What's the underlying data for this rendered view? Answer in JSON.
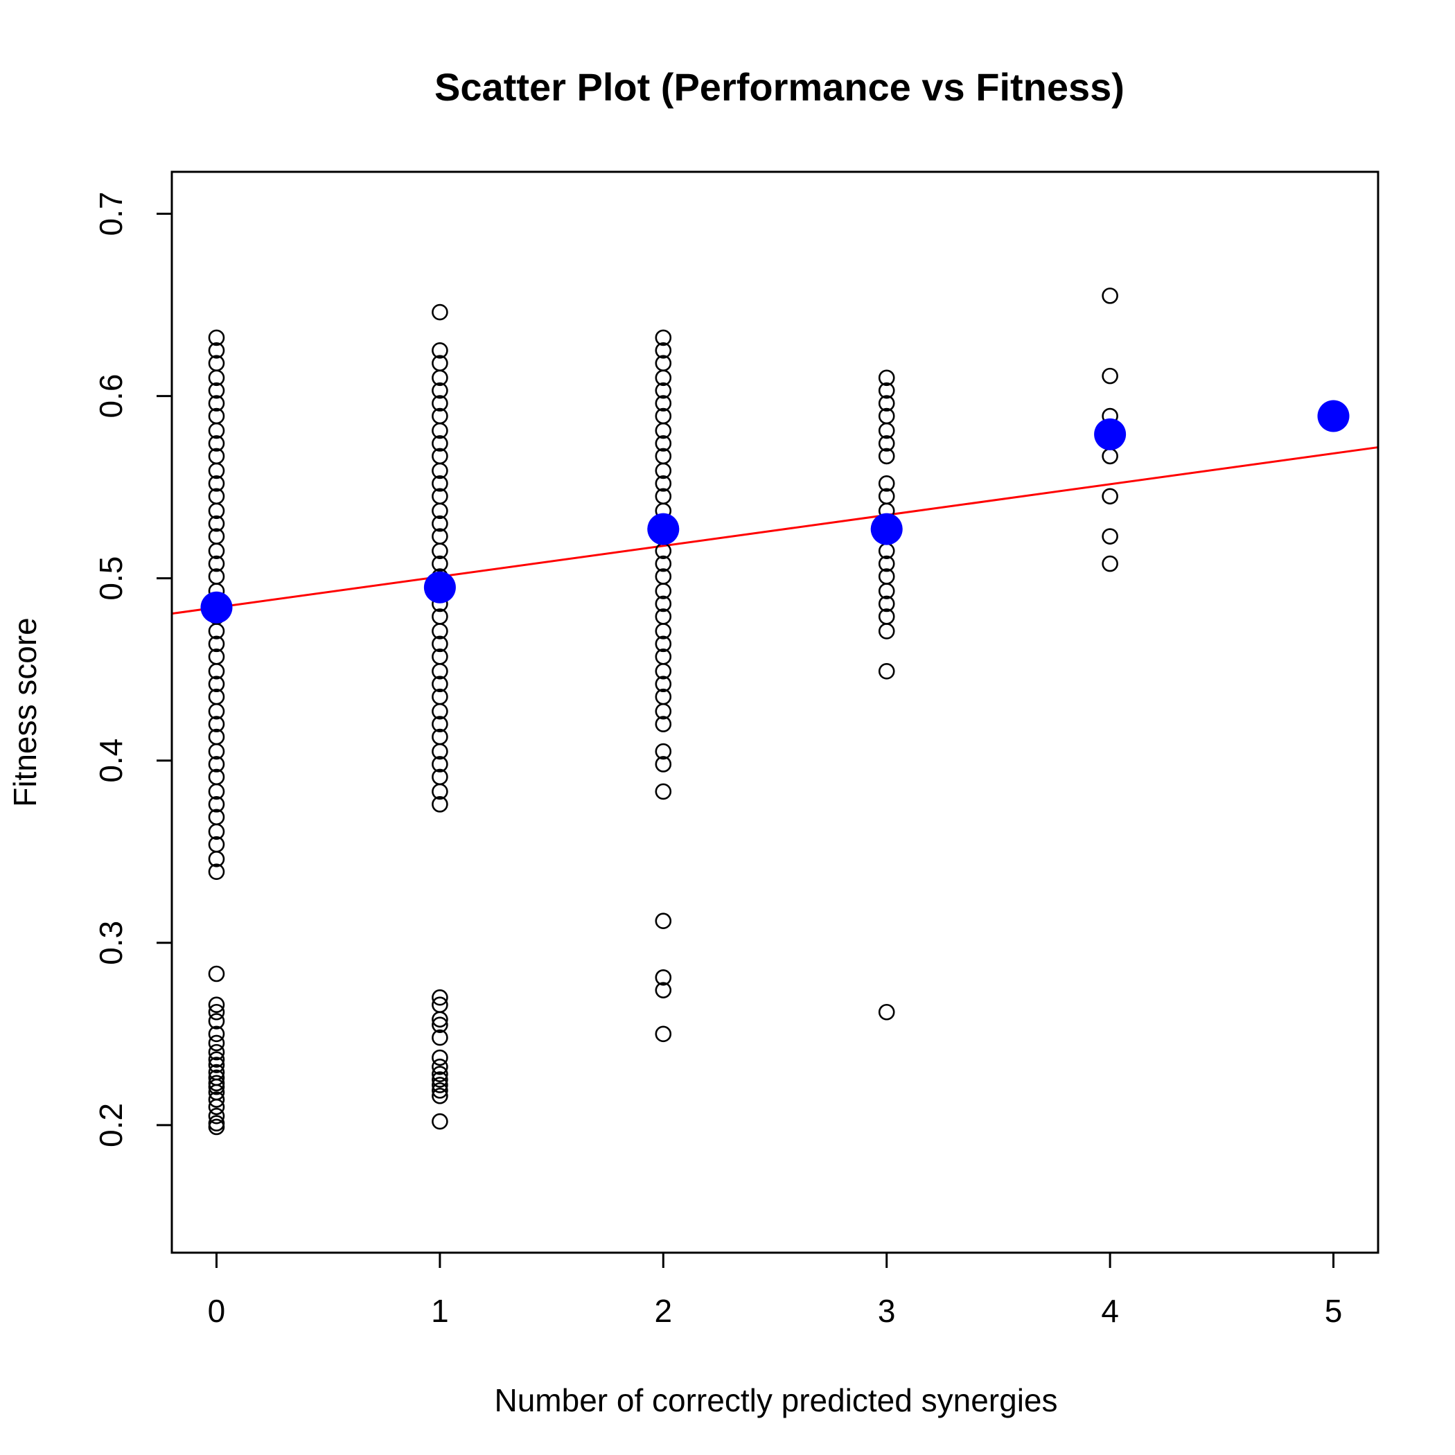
{
  "chart_data": {
    "type": "scatter",
    "title": "Scatter Plot (Performance vs Fitness)",
    "xlabel": "Number of correctly predicted synergies",
    "ylabel": "Fitness score",
    "xlim": [
      -0.2,
      5.2
    ],
    "ylim": [
      0.13,
      0.723
    ],
    "xticks": [
      "0",
      "1",
      "2",
      "3",
      "4",
      "5"
    ],
    "yticks": [
      "0.2",
      "0.3",
      "0.4",
      "0.5",
      "0.6",
      "0.7"
    ],
    "grid": false,
    "legend": "none",
    "colors": {
      "points": "#000000",
      "means": "#0000ff",
      "fit": "#ff0000"
    },
    "series": [
      {
        "kind": "observations",
        "groups": [
          {
            "x": 0,
            "y": [
              0.632,
              0.625,
              0.618,
              0.61,
              0.603,
              0.596,
              0.589,
              0.581,
              0.574,
              0.567,
              0.559,
              0.552,
              0.545,
              0.537,
              0.53,
              0.523,
              0.515,
              0.508,
              0.501,
              0.493,
              0.486,
              0.479,
              0.471,
              0.464,
              0.457,
              0.449,
              0.442,
              0.435,
              0.427,
              0.42,
              0.413,
              0.405,
              0.398,
              0.391,
              0.383,
              0.376,
              0.369,
              0.361,
              0.354,
              0.346,
              0.339,
              0.283,
              0.266,
              0.262,
              0.257,
              0.25,
              0.245,
              0.24,
              0.236,
              0.233,
              0.229,
              0.226,
              0.223,
              0.221,
              0.218,
              0.214,
              0.21,
              0.205,
              0.201,
              0.199
            ]
          },
          {
            "x": 1,
            "y": [
              0.646,
              0.625,
              0.618,
              0.61,
              0.603,
              0.596,
              0.589,
              0.581,
              0.574,
              0.567,
              0.559,
              0.552,
              0.545,
              0.537,
              0.53,
              0.523,
              0.515,
              0.508,
              0.501,
              0.493,
              0.486,
              0.479,
              0.471,
              0.464,
              0.457,
              0.449,
              0.442,
              0.435,
              0.427,
              0.42,
              0.413,
              0.405,
              0.398,
              0.391,
              0.383,
              0.376,
              0.27,
              0.266,
              0.258,
              0.255,
              0.248,
              0.237,
              0.232,
              0.228,
              0.225,
              0.222,
              0.219,
              0.216,
              0.202
            ]
          },
          {
            "x": 2,
            "y": [
              0.632,
              0.625,
              0.618,
              0.61,
              0.603,
              0.596,
              0.589,
              0.581,
              0.574,
              0.567,
              0.559,
              0.552,
              0.545,
              0.537,
              0.53,
              0.523,
              0.515,
              0.508,
              0.501,
              0.493,
              0.486,
              0.479,
              0.471,
              0.464,
              0.457,
              0.449,
              0.442,
              0.435,
              0.427,
              0.42,
              0.405,
              0.398,
              0.383,
              0.312,
              0.281,
              0.274,
              0.25
            ]
          },
          {
            "x": 3,
            "y": [
              0.61,
              0.603,
              0.596,
              0.589,
              0.581,
              0.574,
              0.567,
              0.552,
              0.545,
              0.537,
              0.53,
              0.523,
              0.515,
              0.508,
              0.501,
              0.493,
              0.486,
              0.479,
              0.471,
              0.449,
              0.262
            ]
          },
          {
            "x": 4,
            "y": [
              0.655,
              0.611,
              0.589,
              0.581,
              0.567,
              0.545,
              0.523,
              0.508
            ]
          }
        ]
      },
      {
        "kind": "group-means",
        "x": [
          0,
          1,
          2,
          3,
          4,
          5
        ],
        "y": [
          0.484,
          0.495,
          0.527,
          0.527,
          0.579,
          0.589
        ]
      },
      {
        "kind": "regression-line",
        "intercept": 0.484,
        "slope": 0.0169
      }
    ]
  }
}
